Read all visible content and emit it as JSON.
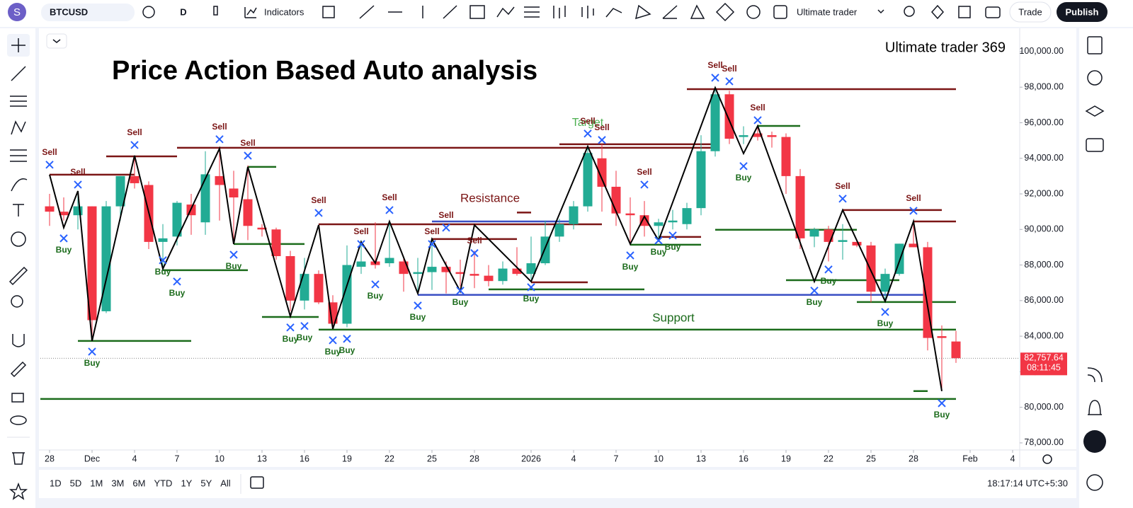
{
  "header": {
    "avatar": "S",
    "symbol": "BTCUSD",
    "interval": "D",
    "indicators": "Indicators",
    "layout_name": "Ultimate trader",
    "trade": "Trade",
    "publish": "Publish"
  },
  "footer": {
    "ranges": [
      "1D",
      "5D",
      "1M",
      "3M",
      "6M",
      "YTD",
      "1Y",
      "5Y",
      "All"
    ],
    "clock": "18:17:14 UTC+5:30"
  },
  "chart_data": {
    "type": "candlestick",
    "title": "Price Action Based Auto analysis",
    "subtitle": "Ultimate trader 369",
    "annotations": {
      "resistance": "Resistance",
      "support": "Support",
      "target": "Target"
    },
    "xlim": [
      -0.65,
      68.5
    ],
    "xticks": [
      {
        "value": 0,
        "label": "28"
      },
      {
        "value": 3,
        "label": "Dec"
      },
      {
        "value": 6,
        "label": "4"
      },
      {
        "value": 9,
        "label": "7"
      },
      {
        "value": 12,
        "label": "10"
      },
      {
        "value": 15,
        "label": "13"
      },
      {
        "value": 18,
        "label": "16"
      },
      {
        "value": 21,
        "label": "19"
      },
      {
        "value": 24,
        "label": "22"
      },
      {
        "value": 27,
        "label": "25"
      },
      {
        "value": 30,
        "label": "28"
      },
      {
        "value": 34,
        "label": "2026"
      },
      {
        "value": 37,
        "label": "4"
      },
      {
        "value": 40,
        "label": "7"
      },
      {
        "value": 43,
        "label": "10"
      },
      {
        "value": 46,
        "label": "13"
      },
      {
        "value": 49,
        "label": "16"
      },
      {
        "value": 52,
        "label": "19"
      },
      {
        "value": 55,
        "label": "22"
      },
      {
        "value": 58,
        "label": "25"
      },
      {
        "value": 61,
        "label": "28"
      },
      {
        "value": 65,
        "label": "Feb"
      },
      {
        "value": 68,
        "label": "4"
      }
    ],
    "ylim": [
      77600,
      101310
    ],
    "yticks": [
      {
        "value": 78000,
        "label": "78,000.00"
      },
      {
        "value": 80000,
        "label": "80,000.00"
      },
      {
        "value": 82000,
        "label": "82,000.00"
      },
      {
        "value": 84000,
        "label": "84,000.00"
      },
      {
        "value": 86000,
        "label": "86,000.00"
      },
      {
        "value": 88000,
        "label": "88,000.00"
      },
      {
        "value": 90000,
        "label": "90,000.00"
      },
      {
        "value": 92000,
        "label": "92,000.00"
      },
      {
        "value": 94000,
        "label": "94,000.00"
      },
      {
        "value": 96000,
        "label": "96,000.00"
      },
      {
        "value": 98000,
        "label": "98,000.00"
      },
      {
        "value": 100000,
        "label": "100,000.00"
      }
    ],
    "up_color": "#22ab94",
    "down_color": "#f23645",
    "open": [
      91300,
      91000,
      90800,
      91300,
      85400,
      91300,
      93000,
      92500,
      89300,
      89600,
      91400,
      90400,
      93000,
      92300,
      91700,
      90100,
      90000,
      88500,
      86000,
      87500,
      85900,
      84700,
      87900,
      88200,
      88100,
      88200,
      87500,
      87600,
      87900,
      87600,
      87500,
      87400,
      87100,
      87800,
      87500,
      88100,
      89600,
      90300,
      91300,
      94000,
      92400,
      90900,
      90800,
      90200,
      90400,
      90300,
      91200,
      94400,
      97600,
      95200,
      95400,
      95300,
      95200,
      93000,
      89600,
      90000,
      89300,
      89300,
      89100,
      86500,
      87500,
      89200,
      89000,
      84000,
      83700
    ],
    "high": [
      92000,
      91800,
      92000,
      91300,
      91600,
      93000,
      94000,
      92700,
      90300,
      91600,
      92000,
      94400,
      94600,
      93300,
      93600,
      90300,
      90100,
      88800,
      88400,
      87700,
      86300,
      89100,
      89400,
      90400,
      90400,
      88500,
      88400,
      89300,
      88200,
      88300,
      88800,
      88000,
      88200,
      89000,
      89600,
      90500,
      90600,
      91600,
      94700,
      94800,
      93300,
      91800,
      91600,
      90600,
      91100,
      91500,
      95300,
      98000,
      97800,
      95800,
      95800,
      95500,
      95400,
      93400,
      90100,
      90200,
      90300,
      89400,
      89300,
      87800,
      89200,
      90500,
      89300,
      84600,
      84300
    ],
    "low": [
      90200,
      90500,
      90000,
      83800,
      85300,
      90500,
      92300,
      88900,
      87700,
      89100,
      89700,
      89700,
      90500,
      89300,
      89400,
      89600,
      88300,
      85400,
      85500,
      85800,
      84400,
      84500,
      87500,
      87800,
      87900,
      86500,
      86500,
      86600,
      86400,
      86800,
      86700,
      86800,
      86900,
      87400,
      87200,
      88000,
      89300,
      90000,
      91000,
      91000,
      90200,
      89300,
      89600,
      89400,
      90000,
      90000,
      90800,
      94100,
      94800,
      94800,
      95000,
      94600,
      92000,
      88900,
      89000,
      88200,
      88300,
      89000,
      85900,
      85900,
      87400,
      89000,
      83200,
      81000,
      82500
    ],
    "close": [
      91000,
      90800,
      91300,
      84900,
      91300,
      93000,
      92600,
      89300,
      89500,
      91500,
      90800,
      93100,
      92500,
      91800,
      90200,
      90000,
      88500,
      86000,
      87500,
      85900,
      84700,
      88000,
      88200,
      88000,
      88400,
      87500,
      87600,
      87900,
      87600,
      87500,
      87400,
      87100,
      87800,
      87500,
      88100,
      89600,
      90300,
      91300,
      94300,
      92400,
      90900,
      90800,
      90200,
      90400,
      90500,
      91200,
      94400,
      97600,
      95100,
      95300,
      95200,
      95200,
      93000,
      89500,
      90000,
      89300,
      89400,
      89100,
      86500,
      87500,
      89200,
      89000,
      83900,
      83900,
      82760
    ],
    "last_price": {
      "value": 82757.64,
      "label": "82,757.64",
      "countdown": "08:11:45",
      "color": "#f23645"
    },
    "zigzag": {
      "color": "#000000",
      "x": [
        0,
        1,
        2,
        3,
        6,
        8,
        12,
        13,
        14,
        17,
        19,
        20,
        22,
        23,
        24,
        26,
        27,
        29,
        30,
        34,
        38,
        41,
        42,
        43,
        47,
        49,
        50,
        54,
        56,
        59,
        61,
        63
      ],
      "values": [
        93080,
        90100,
        92160,
        83730,
        94150,
        87790,
        94550,
        89180,
        93520,
        85120,
        90250,
        84410,
        89300,
        88110,
        90450,
        86400,
        89460,
        86520,
        90250,
        87070,
        94670,
        89180,
        90730,
        89380,
        97970,
        94270,
        95820,
        87070,
        91090,
        85960,
        90450,
        80910
      ]
    },
    "signal_colors": {
      "Sell": "#7b1515",
      "Buy": "#1b6b1b",
      "marker": "#2962ff"
    },
    "signals": [
      {
        "label": "Sell",
        "x": 0,
        "value": 93640
      },
      {
        "label": "Sell",
        "x": 2,
        "value": 92520
      },
      {
        "label": "Sell",
        "x": 6,
        "value": 94750
      },
      {
        "label": "Sell",
        "x": 12,
        "value": 95070
      },
      {
        "label": "Sell",
        "x": 14,
        "value": 94150
      },
      {
        "label": "Sell",
        "x": 19,
        "value": 90930
      },
      {
        "label": "Sell",
        "x": 22,
        "value": 89180
      },
      {
        "label": "Sell",
        "x": 24,
        "value": 91090
      },
      {
        "label": "Sell",
        "x": 27,
        "value": 89180
      },
      {
        "label": "Sell",
        "x": 28,
        "value": 90100
      },
      {
        "label": "Sell",
        "x": 30,
        "value": 88670
      },
      {
        "label": "Sell",
        "x": 38,
        "value": 95390
      },
      {
        "label": "Sell",
        "x": 39,
        "value": 95030
      },
      {
        "label": "Sell",
        "x": 42,
        "value": 92520
      },
      {
        "label": "Sell",
        "x": 47,
        "value": 98530
      },
      {
        "label": "Sell",
        "x": 48,
        "value": 98330
      },
      {
        "label": "Sell",
        "x": 50,
        "value": 96140
      },
      {
        "label": "Sell",
        "x": 56,
        "value": 91730
      },
      {
        "label": "Sell",
        "x": 61,
        "value": 91050
      },
      {
        "label": "Buy",
        "x": 1,
        "value": 89500
      },
      {
        "label": "Buy",
        "x": 3,
        "value": 83130
      },
      {
        "label": "Buy",
        "x": 8,
        "value": 88270
      },
      {
        "label": "Buy",
        "x": 9,
        "value": 87070
      },
      {
        "label": "Buy",
        "x": 13,
        "value": 88580
      },
      {
        "label": "Buy",
        "x": 17,
        "value": 84490
      },
      {
        "label": "Buy",
        "x": 18,
        "value": 84570
      },
      {
        "label": "Buy",
        "x": 20,
        "value": 83770
      },
      {
        "label": "Buy",
        "x": 21,
        "value": 83850
      },
      {
        "label": "Buy",
        "x": 23,
        "value": 86910
      },
      {
        "label": "Buy",
        "x": 26,
        "value": 85720
      },
      {
        "label": "Buy",
        "x": 29,
        "value": 86560
      },
      {
        "label": "Buy",
        "x": 34,
        "value": 86750
      },
      {
        "label": "Buy",
        "x": 41,
        "value": 88540
      },
      {
        "label": "Buy",
        "x": 43,
        "value": 89380
      },
      {
        "label": "Buy",
        "x": 44,
        "value": 89660
      },
      {
        "label": "Buy",
        "x": 49,
        "value": 93560
      },
      {
        "label": "Buy",
        "x": 54,
        "value": 86560
      },
      {
        "label": "Buy",
        "x": 55,
        "value": 87750
      },
      {
        "label": "Buy",
        "x": 59,
        "value": 85360
      },
      {
        "label": "Buy",
        "x": 63,
        "value": 80230
      }
    ],
    "levels": [
      {
        "value": 93080,
        "from": 0,
        "to": 6,
        "color": "#7b1515"
      },
      {
        "value": 94110,
        "from": 4,
        "to": 9,
        "color": "#7b1515"
      },
      {
        "value": 94590,
        "from": 9,
        "to": 47,
        "color": "#7b1515"
      },
      {
        "value": 97890,
        "from": 45,
        "to": 64,
        "color": "#7b1515"
      },
      {
        "value": 94790,
        "from": 36,
        "to": 47,
        "color": "#7b1515"
      },
      {
        "value": 90290,
        "from": 19,
        "to": 39,
        "color": "#7b1515"
      },
      {
        "value": 90450,
        "from": 27,
        "to": 37,
        "color": "#3a4fc4"
      },
      {
        "value": 89460,
        "from": 27,
        "to": 33,
        "color": "#7b1515"
      },
      {
        "value": 91090,
        "from": 56,
        "to": 63,
        "color": "#7b1515"
      },
      {
        "value": 90450,
        "from": 61,
        "to": 64,
        "color": "#7b1515"
      },
      {
        "value": 89580,
        "from": 43,
        "to": 46,
        "color": "#7b1515"
      },
      {
        "value": 87030,
        "from": 34,
        "to": 38,
        "color": "#7b1515"
      },
      {
        "value": 90950,
        "from": 33,
        "to": 34,
        "color": "#7b1515"
      },
      {
        "value": 93520,
        "from": 14,
        "to": 16,
        "color": "#1b6b1b"
      },
      {
        "value": 95820,
        "from": 50,
        "to": 53,
        "color": "#1b6b1b"
      },
      {
        "value": 89980,
        "from": 47,
        "to": 57,
        "color": "#1b6b1b"
      },
      {
        "value": 89180,
        "from": 13,
        "to": 18,
        "color": "#1b6b1b"
      },
      {
        "value": 89140,
        "from": 41,
        "to": 46,
        "color": "#1b6b1b"
      },
      {
        "value": 87710,
        "from": 8,
        "to": 14,
        "color": "#1b6b1b"
      },
      {
        "value": 86630,
        "from": 31,
        "to": 42,
        "color": "#1b6b1b"
      },
      {
        "value": 87150,
        "from": 52,
        "to": 60,
        "color": "#1b6b1b"
      },
      {
        "value": 85920,
        "from": 57,
        "to": 64,
        "color": "#1b6b1b"
      },
      {
        "value": 85080,
        "from": 15,
        "to": 19,
        "color": "#1b6b1b"
      },
      {
        "value": 84370,
        "from": 19,
        "to": 64,
        "color": "#1b6b1b"
      },
      {
        "value": 83730,
        "from": 2,
        "to": 10,
        "color": "#1b6b1b"
      },
      {
        "value": 86320,
        "from": 26,
        "to": 62,
        "color": "#3a4fc4"
      },
      {
        "value": 80470,
        "from": -0.65,
        "to": 64,
        "color": "#1b6b1b"
      },
      {
        "value": 80910,
        "from": 61,
        "to": 62,
        "color": "#1b6b1b"
      }
    ]
  }
}
